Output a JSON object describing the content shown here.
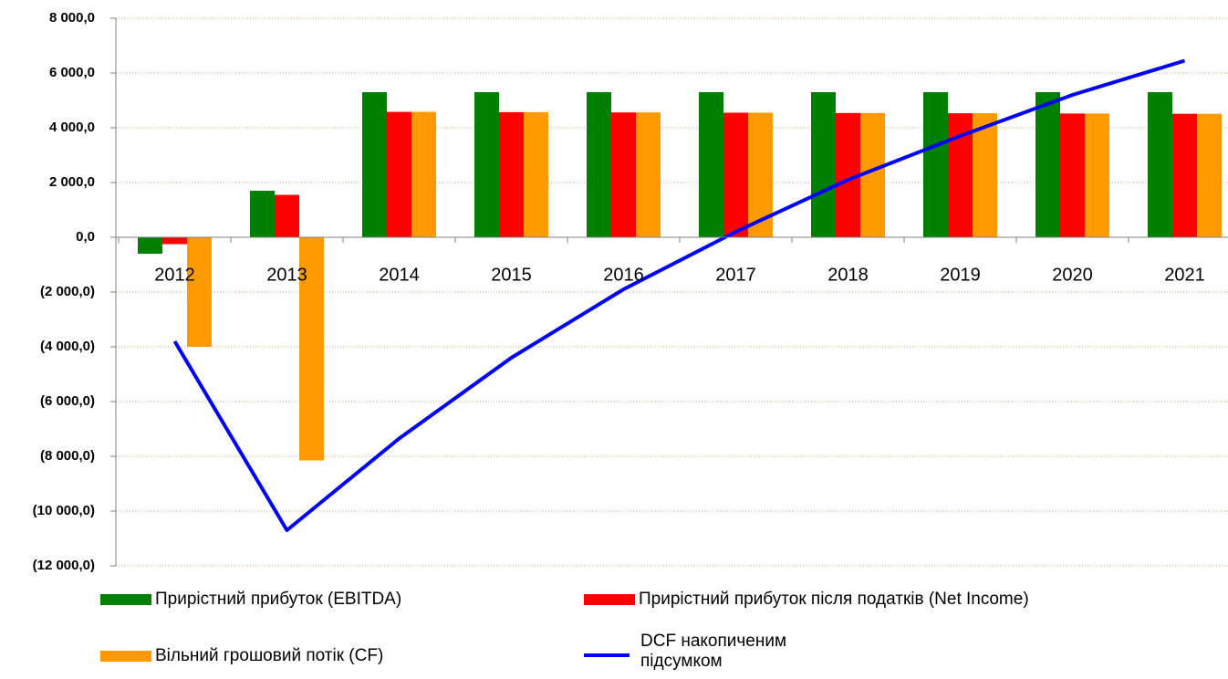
{
  "chart_data": {
    "type": "bar",
    "categories": [
      "2012",
      "2013",
      "2014",
      "2015",
      "2016",
      "2017",
      "2018",
      "2019",
      "2020",
      "2021"
    ],
    "series": [
      {
        "name": "Прирістний прибуток (EBITDA)",
        "color": "#008000",
        "values": [
          -600,
          1700,
          5300,
          5300,
          5300,
          5300,
          5300,
          5300,
          5300,
          5300
        ]
      },
      {
        "name": "Прирістний прибуток після податків (Net Income)",
        "color": "#ff0000",
        "values": [
          -250,
          1550,
          4580,
          4570,
          4560,
          4550,
          4540,
          4530,
          4520,
          4510
        ]
      },
      {
        "name": "Вільний грошовий потік (CF)",
        "color": "#ff9900",
        "values": [
          -4000,
          -8150,
          4580,
          4570,
          4560,
          4550,
          4540,
          4530,
          4520,
          4510
        ]
      },
      {
        "name": "DCF накопиченим підсумком",
        "color": "#0000ff",
        "type": "line",
        "values": [
          -3800,
          -10700,
          -7350,
          -4400,
          -1900,
          200,
          2100,
          3700,
          5200,
          6450
        ]
      }
    ],
    "ylim": [
      -12000,
      8000
    ],
    "yticks": [
      {
        "value": -12000,
        "label": "(12 000,0)"
      },
      {
        "value": -10000,
        "label": "(10 000,0)"
      },
      {
        "value": -8000,
        "label": "(8 000,0)"
      },
      {
        "value": -6000,
        "label": "(6 000,0)"
      },
      {
        "value": -4000,
        "label": "(4 000,0)"
      },
      {
        "value": -2000,
        "label": "(2 000,0)"
      },
      {
        "value": 0,
        "label": "0,0"
      },
      {
        "value": 2000,
        "label": "2 000,0"
      },
      {
        "value": 4000,
        "label": "4 000,0"
      },
      {
        "value": 6000,
        "label": "6 000,0"
      },
      {
        "value": 8000,
        "label": "8 000,0"
      }
    ],
    "grid": true
  }
}
